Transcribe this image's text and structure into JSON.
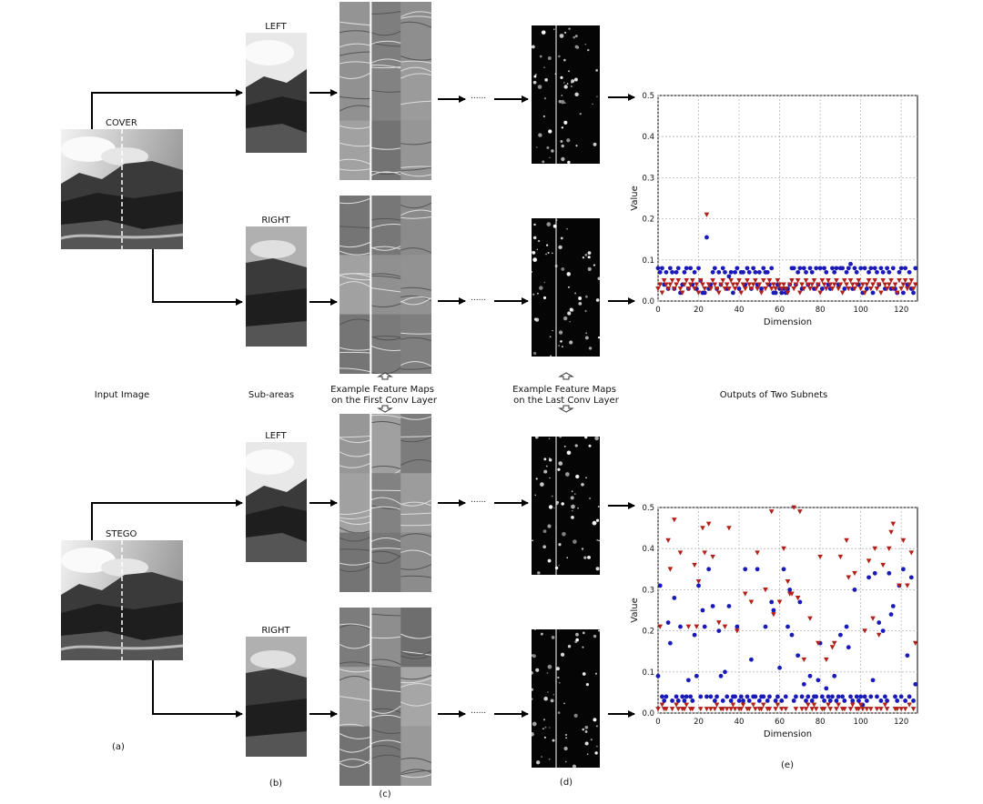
{
  "image_labels": {
    "cover": "COVER",
    "stego": "STEGO",
    "left_top": "LEFT",
    "right_top": "RIGHT",
    "left_bottom": "LEFT",
    "right_bottom": "RIGHT"
  },
  "column_labels": {
    "input": "Input Image",
    "subareas": "Sub-areas",
    "first_conv_line1": "Example Feature Maps",
    "first_conv_line2": "on the First Conv Layer",
    "last_conv_line1": "Example Feature Maps",
    "last_conv_line2": "on the Last Conv Layer",
    "outputs": "Outputs of Two Subnets"
  },
  "panel_letters": {
    "a": "(a)",
    "b": "(b)",
    "c": "(c)",
    "d": "(d)",
    "e": "(e)"
  },
  "ellipsis": "......",
  "chart_data": [
    {
      "type": "scatter",
      "xlabel": "Dimension",
      "ylabel": "Value",
      "xlim": [
        0,
        128
      ],
      "ylim": [
        0,
        0.5
      ],
      "xticks": [
        "0",
        "20",
        "40",
        "60",
        "80",
        "100",
        "120"
      ],
      "yticks": [
        "0.0",
        "0.1",
        "0.2",
        "0.3",
        "0.4",
        "0.5"
      ],
      "grid": true,
      "series": [
        {
          "marker": "circle",
          "color": "#1a1ab8",
          "values": [
            0.08,
            0.07,
            0.08,
            0.04,
            0.07,
            0.03,
            0.08,
            0.07,
            0.03,
            0.07,
            0.08,
            0.02,
            0.04,
            0.07,
            0.08,
            0.03,
            0.08,
            0.04,
            0.07,
            0.03,
            0.08,
            0.05,
            0.02,
            0.02,
            0.155,
            0.03,
            0.04,
            0.07,
            0.08,
            0.03,
            0.07,
            0.04,
            0.08,
            0.07,
            0.03,
            0.06,
            0.07,
            0.02,
            0.07,
            0.08,
            0.03,
            0.07,
            0.07,
            0.04,
            0.08,
            0.07,
            0.03,
            0.08,
            0.07,
            0.04,
            0.07,
            0.03,
            0.08,
            0.07,
            0.07,
            0.04,
            0.08,
            0.02,
            0.02,
            0.04,
            0.03,
            0.02,
            0.03,
            0.02,
            0.03,
            0.04,
            0.08,
            0.08,
            0.04,
            0.07,
            0.08,
            0.03,
            0.08,
            0.07,
            0.04,
            0.08,
            0.07,
            0.03,
            0.08,
            0.04,
            0.08,
            0.03,
            0.08,
            0.07,
            0.04,
            0.03,
            0.08,
            0.07,
            0.08,
            0.04,
            0.08,
            0.08,
            0.03,
            0.07,
            0.08,
            0.09,
            0.03,
            0.08,
            0.07,
            0.04,
            0.08,
            0.02,
            0.08,
            0.03,
            0.07,
            0.08,
            0.02,
            0.08,
            0.07,
            0.04,
            0.08,
            0.07,
            0.03,
            0.08,
            0.07,
            0.03,
            0.08,
            0.03,
            0.02,
            0.07,
            0.08,
            0.02,
            0.08,
            0.04,
            0.07,
            0.03,
            0.02,
            0.08
          ]
        },
        {
          "marker": "triangle-down",
          "color": "#b3201a",
          "values": [
            0.03,
            0.04,
            0.02,
            0.05,
            0.04,
            0.03,
            0.04,
            0.05,
            0.03,
            0.04,
            0.05,
            0.03,
            0.02,
            0.04,
            0.05,
            0.03,
            0.04,
            0.05,
            0.03,
            0.04,
            0.02,
            0.05,
            0.04,
            0.03,
            0.21,
            0.04,
            0.03,
            0.05,
            0.04,
            0.03,
            0.02,
            0.04,
            0.05,
            0.03,
            0.04,
            0.03,
            0.05,
            0.04,
            0.03,
            0.04,
            0.05,
            0.02,
            0.04,
            0.03,
            0.05,
            0.04,
            0.03,
            0.04,
            0.05,
            0.03,
            0.04,
            0.02,
            0.05,
            0.03,
            0.04,
            0.05,
            0.03,
            0.04,
            0.03,
            0.05,
            0.04,
            0.03,
            0.04,
            0.03,
            0.02,
            0.04,
            0.05,
            0.03,
            0.04,
            0.05,
            0.02,
            0.04,
            0.03,
            0.05,
            0.04,
            0.03,
            0.04,
            0.05,
            0.03,
            0.04,
            0.02,
            0.05,
            0.04,
            0.03,
            0.05,
            0.04,
            0.03,
            0.04,
            0.05,
            0.03,
            0.04,
            0.02,
            0.05,
            0.04,
            0.03,
            0.05,
            0.04,
            0.03,
            0.04,
            0.05,
            0.03,
            0.04,
            0.02,
            0.04,
            0.05,
            0.03,
            0.04,
            0.05,
            0.03,
            0.04,
            0.02,
            0.05,
            0.04,
            0.03,
            0.04,
            0.05,
            0.03,
            0.04,
            0.02,
            0.05,
            0.03,
            0.04,
            0.05,
            0.03,
            0.04,
            0.05,
            0.03,
            0.04
          ]
        }
      ]
    },
    {
      "type": "scatter",
      "xlabel": "Dimension",
      "ylabel": "Value",
      "xlim": [
        0,
        128
      ],
      "ylim": [
        0,
        0.5
      ],
      "xticks": [
        "0",
        "20",
        "40",
        "60",
        "80",
        "100",
        "120"
      ],
      "yticks": [
        "0.0",
        "0.1",
        "0.2",
        "0.3",
        "0.4",
        "0.5"
      ],
      "grid": true,
      "series": [
        {
          "marker": "circle",
          "color": "#1a1ab8",
          "values": [
            0.09,
            0.31,
            0.04,
            0.03,
            0.04,
            0.22,
            0.17,
            0.03,
            0.28,
            0.04,
            0.03,
            0.21,
            0.04,
            0.03,
            0.04,
            0.08,
            0.04,
            0.03,
            0.19,
            0.09,
            0.31,
            0.04,
            0.25,
            0.21,
            0.04,
            0.35,
            0.04,
            0.26,
            0.03,
            0.04,
            0.2,
            0.09,
            0.03,
            0.1,
            0.04,
            0.26,
            0.03,
            0.04,
            0.04,
            0.21,
            0.03,
            0.04,
            0.03,
            0.35,
            0.04,
            0.03,
            0.13,
            0.04,
            0.04,
            0.35,
            0.03,
            0.04,
            0.04,
            0.21,
            0.03,
            0.04,
            0.27,
            0.25,
            0.03,
            0.04,
            0.11,
            0.03,
            0.35,
            0.04,
            0.21,
            0.3,
            0.19,
            0.03,
            0.04,
            0.14,
            0.27,
            0.04,
            0.07,
            0.03,
            0.04,
            0.09,
            0.03,
            0.04,
            0.04,
            0.08,
            0.17,
            0.04,
            0.03,
            0.06,
            0.04,
            0.03,
            0.04,
            0.09,
            0.03,
            0.04,
            0.19,
            0.04,
            0.03,
            0.21,
            0.16,
            0.04,
            0.03,
            0.3,
            0.04,
            0.03,
            0.04,
            0.02,
            0.04,
            0.03,
            0.33,
            0.04,
            0.08,
            0.34,
            0.04,
            0.22,
            0.03,
            0.2,
            0.04,
            0.03,
            0.34,
            0.24,
            0.26,
            0.04,
            0.03,
            0.31,
            0.04,
            0.35,
            0.03,
            0.14,
            0.04,
            0.33,
            0.03,
            0.07
          ]
        },
        {
          "marker": "triangle-down",
          "color": "#b3201a",
          "values": [
            0.01,
            0.21,
            0.02,
            0.01,
            0.01,
            0.42,
            0.35,
            0.01,
            0.47,
            0.02,
            0.01,
            0.39,
            0.01,
            0.01,
            0.02,
            0.21,
            0.01,
            0.01,
            0.36,
            0.21,
            0.32,
            0.01,
            0.45,
            0.39,
            0.01,
            0.46,
            0.01,
            0.38,
            0.01,
            0.02,
            0.22,
            0.01,
            0.01,
            0.21,
            0.01,
            0.45,
            0.01,
            0.02,
            0.01,
            0.2,
            0.01,
            0.01,
            0.02,
            0.29,
            0.01,
            0.01,
            0.27,
            0.02,
            0.01,
            0.39,
            0.01,
            0.01,
            0.02,
            0.3,
            0.01,
            0.01,
            0.49,
            0.24,
            0.01,
            0.02,
            0.27,
            0.01,
            0.4,
            0.01,
            0.32,
            0.29,
            0.29,
            0.5,
            0.01,
            0.28,
            0.49,
            0.01,
            0.13,
            0.01,
            0.02,
            0.23,
            0.01,
            0.02,
            0.01,
            0.17,
            0.38,
            0.01,
            0.01,
            0.13,
            0.02,
            0.01,
            0.16,
            0.17,
            0.01,
            0.02,
            0.38,
            0.01,
            0.01,
            0.42,
            0.33,
            0.01,
            0.02,
            0.34,
            0.01,
            0.01,
            0.02,
            0.01,
            0.2,
            0.01,
            0.37,
            0.01,
            0.23,
            0.4,
            0.01,
            0.19,
            0.01,
            0.36,
            0.02,
            0.01,
            0.4,
            0.44,
            0.46,
            0.01,
            0.01,
            0.31,
            0.01,
            0.42,
            0.01,
            0.31,
            0.02,
            0.39,
            0.01,
            0.17
          ]
        }
      ]
    }
  ]
}
